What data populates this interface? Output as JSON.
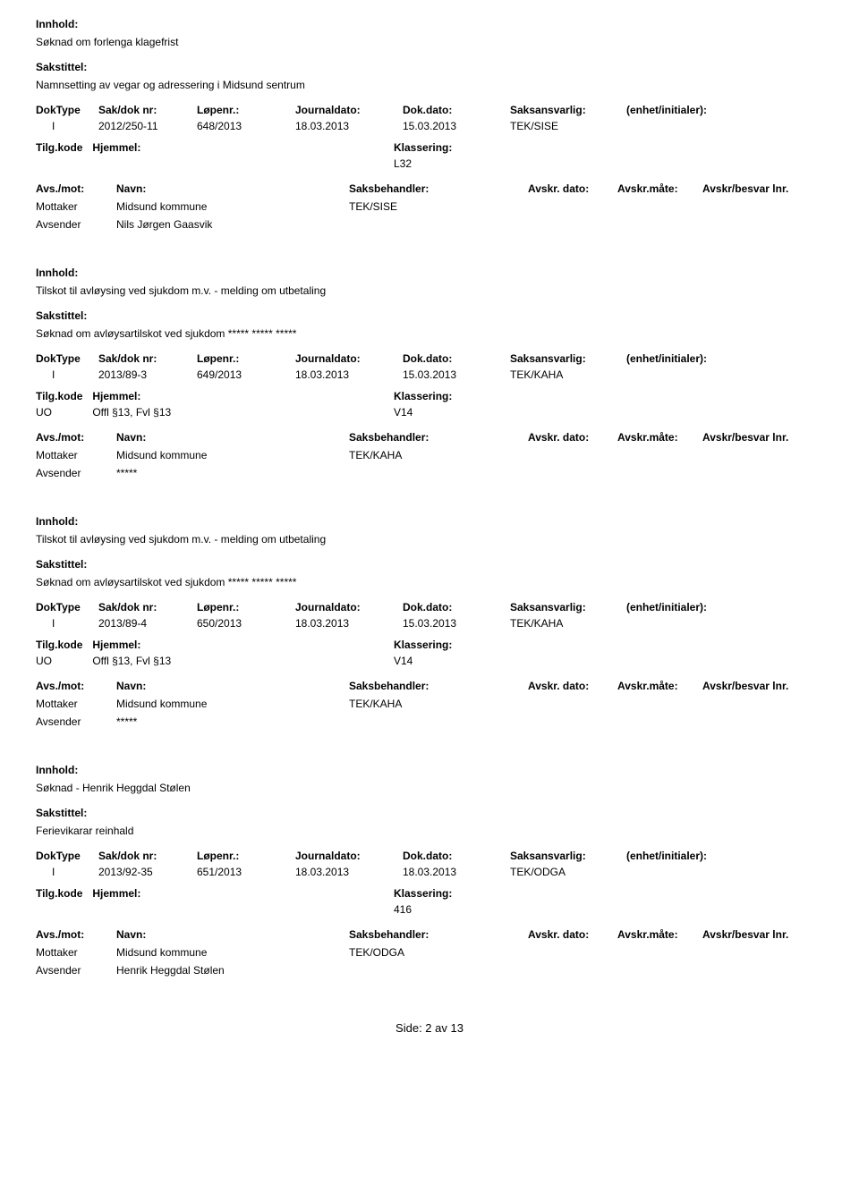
{
  "labels": {
    "innhold": "Innhold:",
    "sakstittel": "Sakstittel:",
    "doktype": "DokType",
    "sakdok": "Sak/dok nr:",
    "lopenr": "Løpenr.:",
    "journaldato": "Journaldato:",
    "dokdato": "Dok.dato:",
    "saksansvarlig": "Saksansvarlig:",
    "enhet": "(enhet/initialer):",
    "tilgkode": "Tilg.kode",
    "hjemmel": "Hjemmel:",
    "klassering": "Klassering:",
    "avsmot": "Avs./mot:",
    "navn": "Navn:",
    "saksbehandler": "Saksbehandler:",
    "avskrdato": "Avskr. dato:",
    "avskrmate": "Avskr.måte:",
    "avskrbesvar": "Avskr/besvar lnr.",
    "mottaker": "Mottaker",
    "avsender": "Avsender"
  },
  "records": [
    {
      "innhold": "Søknad om forlenga klagefrist",
      "sakstittel": "Namnsetting av vegar og adressering i Midsund sentrum",
      "doktype": "I",
      "sakdok": "2012/250-11",
      "lopenr": "648/2013",
      "journaldato": "18.03.2013",
      "dokdato": "15.03.2013",
      "saksansvarlig": "TEK/SISE",
      "tilgkode": "",
      "hjemmel": "",
      "klassering": "L32",
      "saksbehandler": "TEK/SISE",
      "mottaker": "Midsund kommune",
      "avsender": "Nils Jørgen Gaasvik"
    },
    {
      "innhold": "Tilskot til avløysing ved sjukdom m.v. - melding om utbetaling",
      "sakstittel": "Søknad om avløysartilskot ved sjukdom ***** ***** *****",
      "doktype": "I",
      "sakdok": "2013/89-3",
      "lopenr": "649/2013",
      "journaldato": "18.03.2013",
      "dokdato": "15.03.2013",
      "saksansvarlig": "TEK/KAHA",
      "tilgkode": "UO",
      "hjemmel": "Offl §13, Fvl §13",
      "klassering": "V14",
      "saksbehandler": "TEK/KAHA",
      "mottaker": "Midsund kommune",
      "avsender": "*****"
    },
    {
      "innhold": "Tilskot til avløysing ved sjukdom m.v. - melding om utbetaling",
      "sakstittel": "Søknad om avløysartilskot ved sjukdom ***** ***** *****",
      "doktype": "I",
      "sakdok": "2013/89-4",
      "lopenr": "650/2013",
      "journaldato": "18.03.2013",
      "dokdato": "15.03.2013",
      "saksansvarlig": "TEK/KAHA",
      "tilgkode": "UO",
      "hjemmel": "Offl §13, Fvl §13",
      "klassering": "V14",
      "saksbehandler": "TEK/KAHA",
      "mottaker": "Midsund kommune",
      "avsender": "*****"
    },
    {
      "innhold": "Søknad - Henrik Heggdal Stølen",
      "sakstittel": "Ferievikarar reinhald",
      "doktype": "I",
      "sakdok": "2013/92-35",
      "lopenr": "651/2013",
      "journaldato": "18.03.2013",
      "dokdato": "18.03.2013",
      "saksansvarlig": "TEK/ODGA",
      "tilgkode": "",
      "hjemmel": "",
      "klassering": "416",
      "saksbehandler": "TEK/ODGA",
      "mottaker": "Midsund kommune",
      "avsender": "Henrik Heggdal Stølen"
    }
  ],
  "footer": "Side:  2  av  13"
}
